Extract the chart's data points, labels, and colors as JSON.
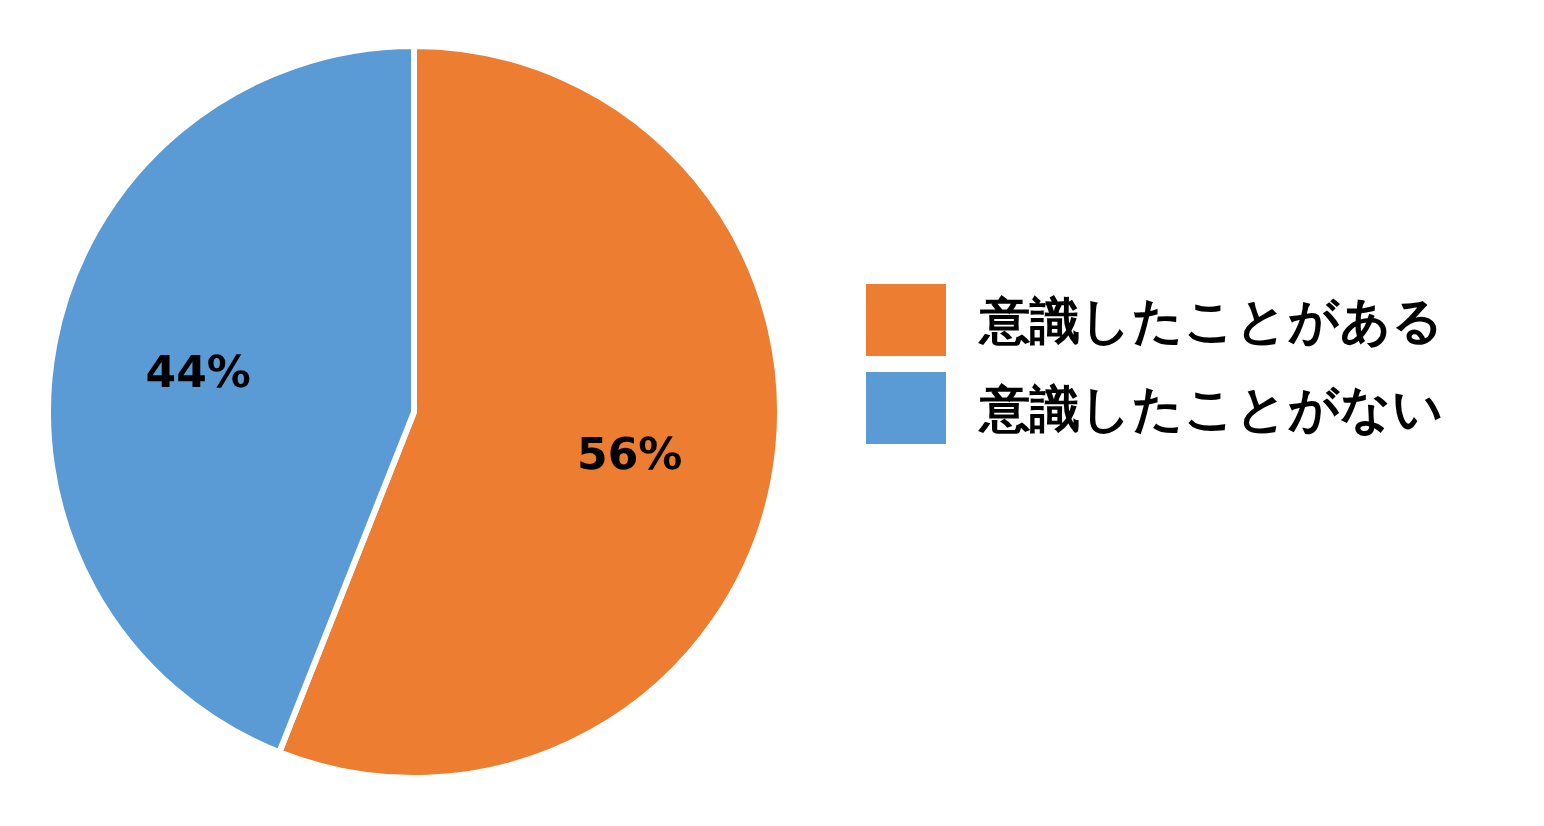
{
  "chart_data": {
    "type": "pie",
    "categories": [
      "意識したことがある",
      "意識したことがない"
    ],
    "values": [
      56,
      44
    ],
    "colors": [
      "#ed7d31",
      "#5b9bd5"
    ],
    "value_labels": [
      "56%",
      "44%"
    ],
    "legend": "right"
  }
}
